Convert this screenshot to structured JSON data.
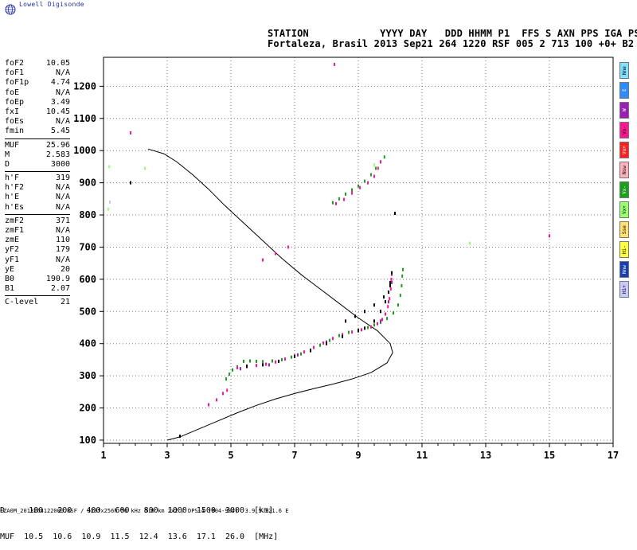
{
  "brand": {
    "name": "Lowell Digisonde",
    "logo_icon": "globe-icon"
  },
  "header": {
    "line1": "STATION            YYYY DAY   DDD HHMM P1  FFS S AXN PPS IGA PS",
    "line2": "Fortaleza, Brasil 2013 Sep21 264 1220 RSF 005 2 713 100 +0+ B2"
  },
  "params": [
    {
      "k": "foF2",
      "v": "10.05"
    },
    {
      "k": "foF1",
      "v": "N/A"
    },
    {
      "k": "foF1p",
      "v": "4.74"
    },
    {
      "k": "foE",
      "v": "N/A"
    },
    {
      "k": "foEp",
      "v": "3.49"
    },
    {
      "k": "fxI",
      "v": "10.45"
    },
    {
      "k": "foEs",
      "v": "N/A"
    },
    {
      "k": "fmin",
      "v": "5.45"
    },
    {
      "sep": true
    },
    {
      "k": "MUF",
      "v": "25.96"
    },
    {
      "k": "M",
      "v": "2.583"
    },
    {
      "k": "D",
      "v": "3000"
    },
    {
      "sep": true
    },
    {
      "k": "h'F",
      "v": "319"
    },
    {
      "k": "h'F2",
      "v": "N/A"
    },
    {
      "k": "h'E",
      "v": "N/A"
    },
    {
      "k": "h'Es",
      "v": "N/A"
    },
    {
      "sep": true
    },
    {
      "k": "zmF2",
      "v": "371"
    },
    {
      "k": "zmF1",
      "v": "N/A"
    },
    {
      "k": "zmE",
      "v": "110"
    },
    {
      "k": "yF2",
      "v": "179"
    },
    {
      "k": "yF1",
      "v": "N/A"
    },
    {
      "k": "yE",
      "v": "20"
    },
    {
      "k": "B0",
      "v": "190.9"
    },
    {
      "k": "B1",
      "v": "2.07"
    },
    {
      "sep": true
    },
    {
      "k": "C-level",
      "v": "21"
    }
  ],
  "legend": [
    {
      "label": "Nne",
      "color": "#7fe0ff"
    },
    {
      "label": "E",
      "color": "#2d8bff"
    },
    {
      "label": "W",
      "color": "#9b1fb5"
    },
    {
      "label": "Vo-",
      "color": "#ff1493"
    },
    {
      "label": "Vo+",
      "color": "#ff2020"
    },
    {
      "label": "Nsw",
      "color": "#ffb0b8"
    },
    {
      "label": "Vx-",
      "color": "#1aa01a"
    },
    {
      "label": "Vx+",
      "color": "#98ff70"
    },
    {
      "label": "Sse",
      "color": "#ffe070"
    },
    {
      "label": "Hi-",
      "color": "#ffff40"
    },
    {
      "label": "Nnw",
      "color": "#1840b0"
    },
    {
      "label": "Hi+",
      "color": "#c8c8ff"
    }
  ],
  "muf_table": {
    "row1": "D     100   200   400   600   800  1000  1500  3000  [km]",
    "row2": "MUF  10.5  10.6  10.9  11.5  12.4  13.6  17.1  26.0  [MHz]"
  },
  "footer": "FZA0M_2013264122000.RSF / 320fx256h 50 kHz 5.0 km 2x2 / DPS-4 (904-904)  3.9 S 321.6 E",
  "chart_data": {
    "type": "scatter",
    "xlim": [
      1,
      17
    ],
    "ylim": [
      90,
      1290
    ],
    "xticks": [
      1,
      3,
      5,
      7,
      9,
      11,
      13,
      15,
      17
    ],
    "yticks": [
      100,
      200,
      300,
      400,
      500,
      600,
      700,
      800,
      900,
      1000,
      1100,
      1200
    ],
    "grid": true,
    "profile": [
      [
        3.0,
        100
      ],
      [
        3.4,
        110
      ],
      [
        4.0,
        135
      ],
      [
        4.6,
        160
      ],
      [
        5.2,
        185
      ],
      [
        5.8,
        208
      ],
      [
        6.4,
        228
      ],
      [
        7.0,
        245
      ],
      [
        7.6,
        260
      ],
      [
        8.2,
        274
      ],
      [
        8.8,
        290
      ],
      [
        9.4,
        310
      ],
      [
        9.9,
        340
      ],
      [
        10.08,
        372
      ],
      [
        10.0,
        400
      ],
      [
        9.6,
        440
      ],
      [
        9.0,
        480
      ],
      [
        8.4,
        525
      ],
      [
        7.8,
        570
      ],
      [
        7.2,
        615
      ],
      [
        6.6,
        665
      ],
      [
        6.0,
        720
      ],
      [
        5.4,
        775
      ],
      [
        4.8,
        830
      ],
      [
        4.3,
        880
      ],
      [
        3.8,
        925
      ],
      [
        3.3,
        965
      ],
      [
        2.9,
        990
      ],
      [
        2.4,
        1005
      ]
    ],
    "series": [
      {
        "color": "#1aa01a",
        "points": [
          [
            5.4,
            345
          ],
          [
            5.6,
            346
          ],
          [
            5.8,
            345
          ],
          [
            6.0,
            344
          ],
          [
            6.3,
            346
          ],
          [
            6.6,
            350
          ],
          [
            6.9,
            358
          ],
          [
            7.2,
            368
          ],
          [
            7.5,
            380
          ],
          [
            7.8,
            395
          ],
          [
            8.1,
            410
          ],
          [
            8.4,
            425
          ],
          [
            8.7,
            435
          ],
          [
            9.0,
            442
          ],
          [
            9.3,
            450
          ],
          [
            9.5,
            458
          ],
          [
            9.7,
            466
          ],
          [
            9.9,
            478
          ],
          [
            10.1,
            495
          ],
          [
            10.25,
            520
          ],
          [
            10.32,
            550
          ],
          [
            10.36,
            580
          ],
          [
            10.38,
            610
          ],
          [
            10.4,
            630
          ],
          [
            4.85,
            290
          ],
          [
            4.95,
            305
          ],
          [
            5.05,
            318
          ],
          [
            5.2,
            328
          ],
          [
            8.2,
            838
          ],
          [
            8.4,
            850
          ],
          [
            8.6,
            865
          ],
          [
            8.8,
            878
          ],
          [
            9.0,
            890
          ],
          [
            9.2,
            905
          ],
          [
            9.4,
            925
          ],
          [
            9.55,
            945
          ],
          [
            9.7,
            965
          ],
          [
            9.82,
            980
          ]
        ]
      },
      {
        "color": "#ff1493",
        "points": [
          [
            5.2,
            325
          ],
          [
            5.5,
            328
          ],
          [
            5.8,
            332
          ],
          [
            6.1,
            336
          ],
          [
            6.4,
            343
          ],
          [
            6.7,
            352
          ],
          [
            7.0,
            362
          ],
          [
            7.3,
            374
          ],
          [
            7.6,
            388
          ],
          [
            7.9,
            402
          ],
          [
            8.2,
            416
          ],
          [
            8.5,
            428
          ],
          [
            8.8,
            436
          ],
          [
            9.1,
            443
          ],
          [
            9.4,
            452
          ],
          [
            9.6,
            462
          ],
          [
            9.75,
            475
          ],
          [
            9.85,
            492
          ],
          [
            9.93,
            515
          ],
          [
            9.98,
            540
          ],
          [
            10.02,
            570
          ],
          [
            10.04,
            600
          ],
          [
            10.05,
            615
          ],
          [
            4.3,
            210
          ],
          [
            4.55,
            225
          ],
          [
            4.75,
            245
          ],
          [
            4.88,
            255
          ],
          [
            8.3,
            835
          ],
          [
            8.55,
            848
          ],
          [
            8.8,
            868
          ],
          [
            9.05,
            885
          ],
          [
            9.3,
            900
          ],
          [
            9.5,
            920
          ],
          [
            9.62,
            945
          ],
          [
            9.7,
            965
          ],
          [
            6.0,
            660
          ],
          [
            6.4,
            680
          ],
          [
            6.8,
            700
          ],
          [
            8.25,
            1268
          ],
          [
            1.85,
            1055
          ],
          [
            15.0,
            735
          ]
        ]
      },
      {
        "color": "#9b1fb5",
        "points": [
          [
            5.3,
            322
          ],
          [
            6.2,
            334
          ],
          [
            7.1,
            365
          ],
          [
            8.0,
            405
          ],
          [
            9.0,
            440
          ],
          [
            9.7,
            470
          ],
          [
            9.95,
            530
          ],
          [
            10.05,
            590
          ]
        ]
      },
      {
        "color": "#000000",
        "points": [
          [
            5.5,
            330
          ],
          [
            6.0,
            334
          ],
          [
            6.5,
            345
          ],
          [
            7.0,
            360
          ],
          [
            7.5,
            378
          ],
          [
            8.0,
            400
          ],
          [
            8.5,
            422
          ],
          [
            9.0,
            440
          ],
          [
            9.2,
            448
          ],
          [
            9.5,
            470
          ],
          [
            9.7,
            500
          ],
          [
            9.85,
            530
          ],
          [
            9.95,
            560
          ],
          [
            10.0,
            590
          ],
          [
            10.05,
            620
          ],
          [
            8.6,
            470
          ],
          [
            8.9,
            485
          ],
          [
            9.2,
            500
          ],
          [
            9.5,
            520
          ],
          [
            9.8,
            545
          ],
          [
            10.0,
            580
          ],
          [
            1.85,
            900
          ],
          [
            10.15,
            805
          ],
          [
            3.4,
            112
          ]
        ]
      },
      {
        "color": "#98ff70",
        "points": [
          [
            1.18,
            950
          ],
          [
            2.3,
            945
          ],
          [
            9.5,
            955
          ],
          [
            12.5,
            712
          ],
          [
            1.15,
            818
          ]
        ]
      },
      {
        "color": "#c8c8ff",
        "points": [
          [
            1.2,
            840
          ]
        ]
      }
    ]
  }
}
